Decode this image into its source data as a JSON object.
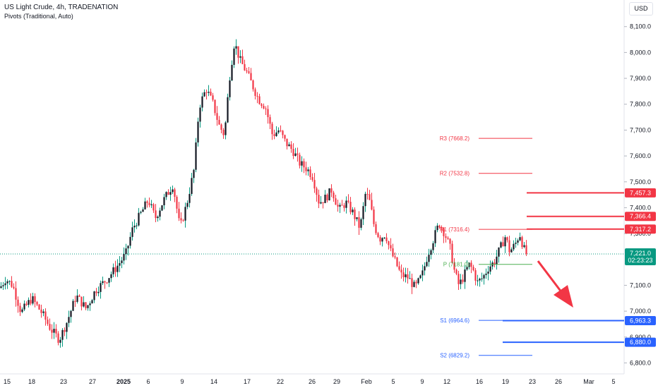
{
  "header": {
    "title": "US Light Crude, 4h, TRADENATION",
    "subtitle": "Pivots (Traditional, Auto)",
    "currency": "USD"
  },
  "colors": {
    "up": "#089981",
    "down": "#f23645",
    "candle": "#131722",
    "resistance": "#f23645",
    "support": "#2962ff",
    "pivot": "#4caf50",
    "current": "#089981",
    "arrow": "#f23645"
  },
  "chart_data": {
    "type": "candlestick",
    "ylim": [
      6760,
      8130
    ],
    "y_ticks": [
      "8,100.0",
      "8,000.0",
      "7,900.0",
      "7,800.0",
      "7,700.0",
      "7,600.0",
      "7,500.0",
      "7,400.0",
      "7,300.0",
      "7,100.0",
      "7,000.0",
      "6,900.0",
      "6,800.0"
    ],
    "x_ticks": [
      "15",
      "18",
      "23",
      "27",
      "2025",
      "6",
      "9",
      "14",
      "17",
      "22",
      "26",
      "29",
      "Feb",
      "5",
      "9",
      "12",
      "16",
      "19",
      "23",
      "26",
      "Mar",
      "5"
    ],
    "price_path": [
      [
        0,
        7090
      ],
      [
        8,
        7125
      ],
      [
        18,
        7100
      ],
      [
        30,
        6995
      ],
      [
        45,
        7050
      ],
      [
        60,
        6990
      ],
      [
        72,
        6930
      ],
      [
        84,
        6890
      ],
      [
        95,
        6960
      ],
      [
        108,
        7060
      ],
      [
        122,
        7010
      ],
      [
        135,
        7080
      ],
      [
        150,
        7120
      ],
      [
        165,
        7170
      ],
      [
        178,
        7220
      ],
      [
        188,
        7320
      ],
      [
        200,
        7380
      ],
      [
        210,
        7430
      ],
      [
        220,
        7360
      ],
      [
        232,
        7430
      ],
      [
        245,
        7490
      ],
      [
        255,
        7320
      ],
      [
        265,
        7420
      ],
      [
        275,
        7550
      ],
      [
        282,
        7790
      ],
      [
        292,
        7860
      ],
      [
        302,
        7800
      ],
      [
        310,
        7720
      ],
      [
        318,
        7680
      ],
      [
        325,
        7900
      ],
      [
        332,
        8040
      ],
      [
        340,
        7970
      ],
      [
        350,
        7920
      ],
      [
        358,
        7870
      ],
      [
        366,
        7820
      ],
      [
        376,
        7790
      ],
      [
        386,
        7680
      ],
      [
        395,
        7700
      ],
      [
        405,
        7650
      ],
      [
        415,
        7620
      ],
      [
        425,
        7570
      ],
      [
        435,
        7550
      ],
      [
        443,
        7520
      ],
      [
        452,
        7420
      ],
      [
        462,
        7440
      ],
      [
        470,
        7470
      ],
      [
        480,
        7390
      ],
      [
        490,
        7420
      ],
      [
        500,
        7380
      ],
      [
        510,
        7320
      ],
      [
        518,
        7460
      ],
      [
        524,
        7420
      ],
      [
        530,
        7330
      ],
      [
        538,
        7280
      ],
      [
        546,
        7300
      ],
      [
        552,
        7240
      ],
      [
        560,
        7190
      ],
      [
        568,
        7140
      ],
      [
        578,
        7130
      ],
      [
        588,
        7090
      ],
      [
        598,
        7140
      ],
      [
        606,
        7220
      ],
      [
        614,
        7280
      ],
      [
        622,
        7340
      ],
      [
        630,
        7300
      ],
      [
        638,
        7240
      ],
      [
        644,
        7150
      ],
      [
        650,
        7100
      ],
      [
        656,
        7130
      ],
      [
        664,
        7180
      ],
      [
        670,
        7160
      ],
      [
        676,
        7110
      ],
      [
        684,
        7130
      ],
      [
        692,
        7170
      ],
      [
        700,
        7190
      ],
      [
        708,
        7240
      ],
      [
        716,
        7290
      ],
      [
        722,
        7230
      ],
      [
        730,
        7260
      ],
      [
        736,
        7300
      ],
      [
        742,
        7240
      ],
      [
        748,
        7221
      ]
    ],
    "pivots": [
      {
        "label": "R3 (7668.2)",
        "value": 7668.2,
        "kind": "resistance"
      },
      {
        "label": "R2 (7532.8)",
        "value": 7532.8,
        "kind": "resistance"
      },
      {
        "label": "R1 (7316.4)",
        "value": 7316.4,
        "kind": "resistance"
      },
      {
        "label": "P (7181.0)",
        "value": 7181.0,
        "kind": "pivot"
      },
      {
        "label": "S1 (6964.6)",
        "value": 6964.6,
        "kind": "support"
      },
      {
        "label": "S2 (6829.2)",
        "value": 6829.2,
        "kind": "support"
      }
    ],
    "levels": [
      {
        "label": "7,457.3",
        "value": 7457.3,
        "kind": "resistance"
      },
      {
        "label": "7,366.4",
        "value": 7366.4,
        "kind": "resistance"
      },
      {
        "label": "7,317.2",
        "value": 7317.2,
        "kind": "resistance"
      },
      {
        "label": "6,963.3",
        "value": 6963.3,
        "kind": "support"
      },
      {
        "label": "6,880.0",
        "value": 6880.0,
        "kind": "support"
      }
    ],
    "current": {
      "price": "7,221.0",
      "countdown": "02:23:23",
      "value": 7221.0
    }
  }
}
